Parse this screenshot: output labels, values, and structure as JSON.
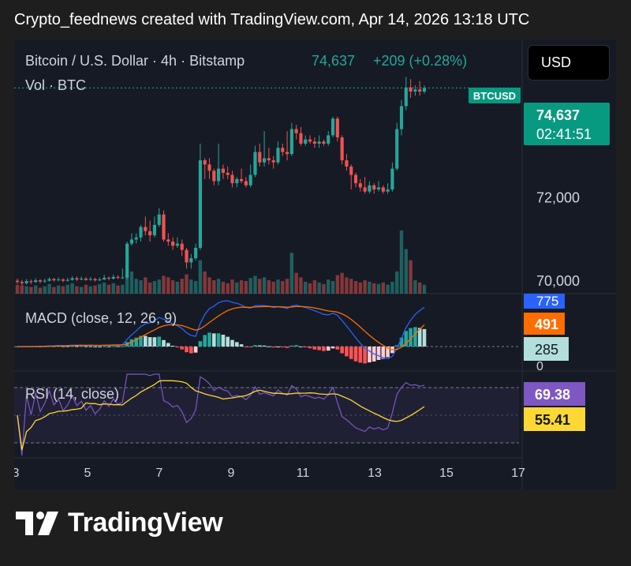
{
  "header": {
    "text": "Crypto_feednews created with TradingView.com, Apr 14, 2026 13:18 UTC"
  },
  "legend": {
    "symbol": "Bitcoin / U.S. Dollar · 4h · Bitstamp",
    "price": "74,637",
    "change": "+209 (+0.28%)",
    "volume_label": "Vol · BTC",
    "macd_label": "MACD (close, 12, 26, 9)",
    "rsi_label": "RSI (14, close)"
  },
  "currency_button": "USD",
  "symbol_badge": "BTCUSD",
  "price_badge": {
    "price": "74,637",
    "countdown": "02:41:51"
  },
  "price_axis": {
    "ticks": [
      {
        "label": "72,000",
        "value": 72000
      },
      {
        "label": "70,000",
        "value": 70000
      }
    ]
  },
  "macd_axis": {
    "zero_label": "0",
    "badges": [
      "775",
      "491",
      "285"
    ]
  },
  "rsi_axis": {
    "badges": [
      "69.38",
      "55.41"
    ]
  },
  "time_axis": {
    "labels": [
      "3",
      "5",
      "7",
      "9",
      "11",
      "13",
      "15",
      "17"
    ]
  },
  "brand": {
    "name": "TradingView"
  },
  "colors": {
    "up": "#26a69a",
    "down": "#ef5350",
    "macd": "#2962ff",
    "signal": "#ff6d00",
    "rsi": "#7e57c2",
    "rsi_ma": "#fdd835",
    "badge_green": "#089981"
  },
  "chart_data": [
    {
      "type": "candlestick",
      "title": "Bitcoin / U.S. Dollar · 4h · Bitstamp",
      "x_ticks": [
        "3",
        "5",
        "7",
        "9",
        "11",
        "13",
        "15",
        "17"
      ],
      "ylim": [
        69700,
        75800
      ],
      "y_ticks": [
        70000,
        72000
      ],
      "last": 74637,
      "candles": [
        [
          70010,
          69980,
          69940,
          70060
        ],
        [
          69980,
          69950,
          69900,
          70030
        ],
        [
          69950,
          70000,
          69920,
          70050
        ],
        [
          70000,
          69980,
          69930,
          70040
        ],
        [
          69980,
          70020,
          69960,
          70070
        ],
        [
          70020,
          69990,
          69950,
          70050
        ],
        [
          69990,
          70010,
          69960,
          70060
        ],
        [
          70010,
          70050,
          69990,
          70090
        ],
        [
          70050,
          70020,
          69990,
          70080
        ],
        [
          70020,
          70040,
          70000,
          70090
        ],
        [
          70040,
          70010,
          69980,
          70070
        ],
        [
          70010,
          70030,
          69990,
          70080
        ],
        [
          70030,
          70070,
          70010,
          70120
        ],
        [
          70070,
          70040,
          70000,
          70110
        ],
        [
          70040,
          70060,
          70020,
          70110
        ],
        [
          70060,
          70030,
          70010,
          70100
        ],
        [
          70030,
          70050,
          70010,
          70100
        ],
        [
          70050,
          70020,
          69990,
          70080
        ],
        [
          70020,
          70040,
          70000,
          70090
        ],
        [
          70040,
          70080,
          70020,
          70150
        ],
        [
          70080,
          70060,
          70020,
          70110
        ],
        [
          70060,
          70100,
          70040,
          70160
        ],
        [
          70100,
          70080,
          70050,
          70140
        ],
        [
          70080,
          70090,
          70050,
          70300
        ],
        [
          70090,
          70900,
          70050,
          70950
        ],
        [
          70900,
          71000,
          70850,
          71150
        ],
        [
          71000,
          71050,
          70900,
          71150
        ],
        [
          71050,
          71300,
          70950,
          71350
        ],
        [
          71300,
          71200,
          71100,
          71550
        ],
        [
          71200,
          71100,
          70950,
          71450
        ],
        [
          71100,
          71350,
          71050,
          71550
        ],
        [
          71350,
          71600,
          71300,
          71750
        ],
        [
          71600,
          71000,
          70950,
          71700
        ],
        [
          71000,
          70950,
          70850,
          71150
        ],
        [
          70950,
          70850,
          70750,
          71050
        ],
        [
          70850,
          70900,
          70800,
          71050
        ],
        [
          70900,
          70750,
          70600,
          71000
        ],
        [
          70750,
          70450,
          70300,
          70800
        ],
        [
          70450,
          70550,
          70300,
          70650
        ],
        [
          70550,
          70800,
          70500,
          70900
        ],
        [
          70800,
          72900,
          70750,
          73300
        ],
        [
          72900,
          72800,
          72450,
          72950
        ],
        [
          72800,
          72650,
          72450,
          72950
        ],
        [
          72650,
          72400,
          72300,
          72700
        ],
        [
          72400,
          72700,
          72300,
          73300
        ],
        [
          72700,
          72600,
          72450,
          72800
        ],
        [
          72600,
          72550,
          72450,
          72750
        ],
        [
          72550,
          72350,
          72250,
          72650
        ],
        [
          72350,
          72450,
          72250,
          72500
        ],
        [
          72450,
          72400,
          72350,
          72700
        ],
        [
          72400,
          72300,
          72250,
          72500
        ],
        [
          72300,
          72550,
          72250,
          72800
        ],
        [
          72550,
          73100,
          72500,
          73250
        ],
        [
          73100,
          72850,
          72750,
          73300
        ],
        [
          72850,
          72950,
          72750,
          73600
        ],
        [
          72950,
          72900,
          72800,
          73200
        ],
        [
          72900,
          72850,
          72700,
          73000
        ],
        [
          72850,
          73200,
          72800,
          73350
        ],
        [
          73200,
          73100,
          73000,
          73300
        ],
        [
          73100,
          73050,
          72900,
          73600
        ],
        [
          73050,
          73650,
          73000,
          73800
        ],
        [
          73650,
          73550,
          73400,
          73750
        ],
        [
          73550,
          73300,
          73250,
          73700
        ],
        [
          73300,
          73400,
          73250,
          73500
        ],
        [
          73400,
          73350,
          73300,
          73500
        ],
        [
          73350,
          73300,
          73200,
          73450
        ],
        [
          73300,
          73350,
          73200,
          73500
        ],
        [
          73350,
          73300,
          73250,
          73400
        ],
        [
          73300,
          73500,
          73250,
          73600
        ],
        [
          73500,
          73900,
          73450,
          73950
        ],
        [
          73900,
          73450,
          73350,
          73950
        ],
        [
          73450,
          72900,
          72800,
          73500
        ],
        [
          72900,
          72750,
          72650,
          73050
        ],
        [
          72750,
          72550,
          72200,
          72800
        ],
        [
          72550,
          72350,
          72250,
          72600
        ],
        [
          72350,
          72250,
          72150,
          72450
        ],
        [
          72250,
          72150,
          72100,
          72500
        ],
        [
          72150,
          72300,
          72100,
          72400
        ],
        [
          72300,
          72200,
          72100,
          72350
        ],
        [
          72200,
          72250,
          72150,
          72400
        ],
        [
          72250,
          72150,
          72100,
          72300
        ],
        [
          72150,
          72200,
          72100,
          72350
        ],
        [
          72200,
          72700,
          72150,
          72850
        ],
        [
          72700,
          73650,
          72650,
          73800
        ],
        [
          73650,
          74200,
          73500,
          74350
        ],
        [
          74200,
          74650,
          74100,
          74900
        ],
        [
          74650,
          74550,
          74400,
          74850
        ],
        [
          74550,
          74600,
          74450,
          74700
        ],
        [
          74600,
          74550,
          74450,
          74800
        ],
        [
          74550,
          74637,
          74500,
          74700
        ]
      ],
      "volume": [
        12,
        11,
        10,
        9,
        11,
        8,
        10,
        13,
        9,
        11,
        10,
        12,
        14,
        10,
        9,
        12,
        10,
        11,
        13,
        15,
        12,
        14,
        11,
        12,
        25,
        30,
        20,
        18,
        22,
        15,
        17,
        19,
        24,
        22,
        18,
        16,
        20,
        26,
        19,
        17,
        45,
        30,
        22,
        18,
        20,
        16,
        14,
        19,
        15,
        18,
        17,
        21,
        24,
        20,
        22,
        18,
        16,
        19,
        17,
        20,
        55,
        28,
        22,
        16,
        14,
        18,
        15,
        13,
        19,
        17,
        25,
        28,
        22,
        20,
        17,
        15,
        18,
        16,
        14,
        13,
        15,
        12,
        16,
        30,
        85,
        60,
        45,
        18,
        15,
        12
      ]
    },
    {
      "type": "macd",
      "title": "MACD (close, 12, 26, 9)",
      "macd_last": 775,
      "signal_last": 491,
      "hist_last": 285
    },
    {
      "type": "rsi",
      "title": "RSI (14, close)",
      "rsi_last": 69.38,
      "ma_last": 55.41
    }
  ]
}
